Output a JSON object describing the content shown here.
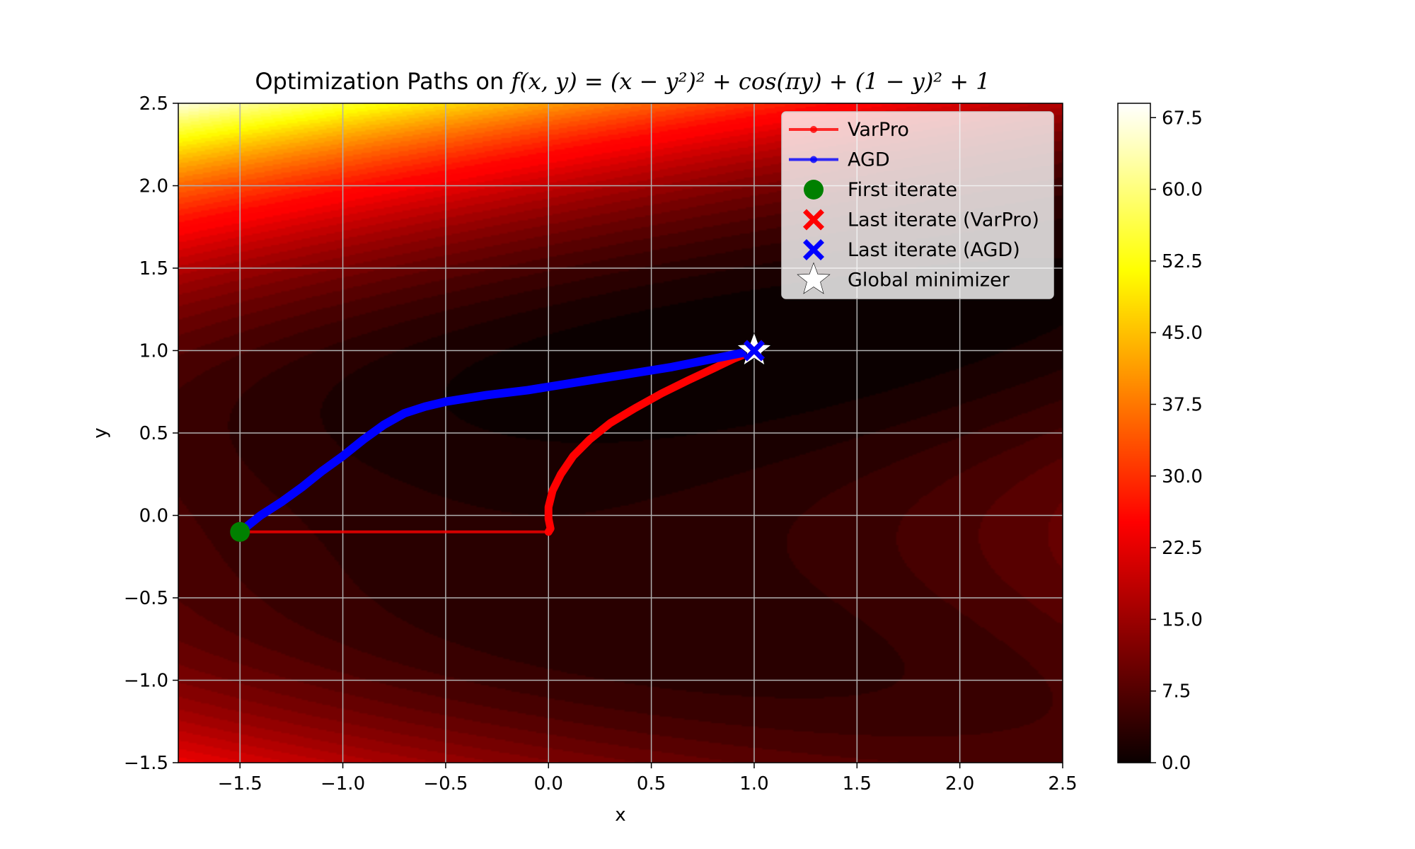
{
  "chart_data": {
    "type": "contour",
    "title": {
      "prefix": "Optimization Paths on ",
      "formula": "f(x, y) = (x − y²)² + cos(πy) + (1 − y)² + 1"
    },
    "xlabel": "x",
    "ylabel": "y",
    "xlim": [
      -1.8,
      2.5
    ],
    "ylim": [
      -1.5,
      2.5
    ],
    "xticks": [
      -1.5,
      -1.0,
      -0.5,
      0.0,
      0.5,
      1.0,
      1.5,
      2.0,
      2.5
    ],
    "xtick_labels": [
      "−1.5",
      "−1.0",
      "−0.5",
      "0.0",
      "0.5",
      "1.0",
      "1.5",
      "2.0",
      "2.5"
    ],
    "yticks": [
      -1.5,
      -1.0,
      -0.5,
      0.0,
      0.5,
      1.0,
      1.5,
      2.0,
      2.5
    ],
    "ytick_labels": [
      "−1.5",
      "−1.0",
      "−0.5",
      "0.0",
      "0.5",
      "1.0",
      "1.5",
      "2.0",
      "2.5"
    ],
    "grid": true,
    "colormap": "hot",
    "colorbar": {
      "range": [
        0,
        69
      ],
      "ticks": [
        0.0,
        7.5,
        15.0,
        22.5,
        30.0,
        37.5,
        45.0,
        52.5,
        60.0,
        67.5
      ],
      "tick_labels": [
        "0.0",
        "7.5",
        "15.0",
        "22.5",
        "30.0",
        "37.5",
        "45.0",
        "52.5",
        "60.0",
        "67.5"
      ]
    },
    "series": [
      {
        "name": "VarPro",
        "color": "#ff0000",
        "points": [
          [
            -1.5,
            -0.1
          ],
          [
            0.0,
            -0.1
          ],
          [
            0.01,
            -0.08
          ],
          [
            0.0,
            -0.02
          ],
          [
            0.0,
            0.05
          ],
          [
            0.02,
            0.15
          ],
          [
            0.06,
            0.25
          ],
          [
            0.12,
            0.36
          ],
          [
            0.2,
            0.46
          ],
          [
            0.3,
            0.56
          ],
          [
            0.42,
            0.65
          ],
          [
            0.55,
            0.74
          ],
          [
            0.68,
            0.82
          ],
          [
            0.8,
            0.89
          ],
          [
            0.9,
            0.95
          ],
          [
            1.0,
            1.0
          ]
        ]
      },
      {
        "name": "AGD",
        "color": "#0000ff",
        "points": [
          [
            -1.5,
            -0.1
          ],
          [
            -1.4,
            0.0
          ],
          [
            -1.3,
            0.08
          ],
          [
            -1.2,
            0.17
          ],
          [
            -1.1,
            0.27
          ],
          [
            -1.0,
            0.36
          ],
          [
            -0.9,
            0.46
          ],
          [
            -0.8,
            0.55
          ],
          [
            -0.7,
            0.62
          ],
          [
            -0.6,
            0.66
          ],
          [
            -0.5,
            0.69
          ],
          [
            -0.3,
            0.73
          ],
          [
            -0.1,
            0.76
          ],
          [
            0.0,
            0.78
          ],
          [
            0.2,
            0.82
          ],
          [
            0.4,
            0.86
          ],
          [
            0.6,
            0.9
          ],
          [
            0.8,
            0.95
          ],
          [
            1.0,
            1.0
          ]
        ]
      }
    ],
    "markers": [
      {
        "name": "First iterate",
        "x": -1.5,
        "y": -0.1,
        "shape": "circle",
        "color": "#008000"
      },
      {
        "name": "Last iterate (VarPro)",
        "x": 1.0,
        "y": 1.0,
        "shape": "x",
        "color": "#ff0000"
      },
      {
        "name": "Last iterate (AGD)",
        "x": 1.0,
        "y": 1.0,
        "shape": "x",
        "color": "#0000ff"
      },
      {
        "name": "Global minimizer",
        "x": 1.0,
        "y": 1.0,
        "shape": "star",
        "color": "#ffffff"
      }
    ],
    "legend": {
      "placement": "upper-right",
      "entries": [
        "VarPro",
        "AGD",
        "First iterate",
        "Last iterate (VarPro)",
        "Last iterate (AGD)",
        "Global minimizer"
      ]
    }
  }
}
